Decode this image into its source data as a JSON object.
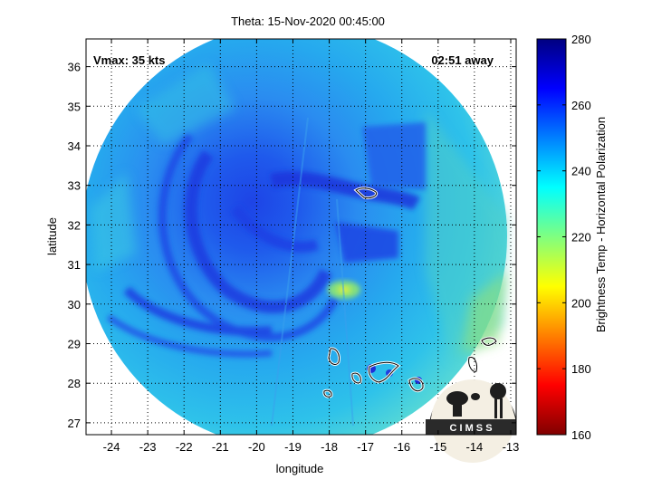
{
  "title": "Theta: 15-Nov-2020 00:45:00",
  "annotations": {
    "vmax": "Vmax: 35 kts",
    "distance": "02:51 away"
  },
  "axes": {
    "xlabel": "longitude",
    "ylabel": "latitude",
    "xticks": [
      "-24",
      "-23",
      "-22",
      "-21",
      "-20",
      "-19",
      "-18",
      "-17",
      "-16",
      "-15",
      "-14",
      "-13"
    ],
    "yticks": [
      "27",
      "28",
      "29",
      "30",
      "31",
      "32",
      "33",
      "34",
      "35",
      "36"
    ],
    "xlim": [
      -24.7,
      -12.85
    ],
    "ylim": [
      26.7,
      36.7
    ],
    "grid": true
  },
  "colorbar": {
    "label": "Brightness Temp - Horizontal Polarization",
    "ticks": [
      "160",
      "180",
      "200",
      "220",
      "240",
      "260",
      "280"
    ],
    "range": [
      160,
      280
    ],
    "colormap": "jet"
  },
  "logo": {
    "text": "C I M S S"
  },
  "colors": {
    "swath_base": "#26a9ee",
    "cold_band": "#1f3fe0",
    "coast": "#ffffff",
    "grid": "#000000"
  }
}
